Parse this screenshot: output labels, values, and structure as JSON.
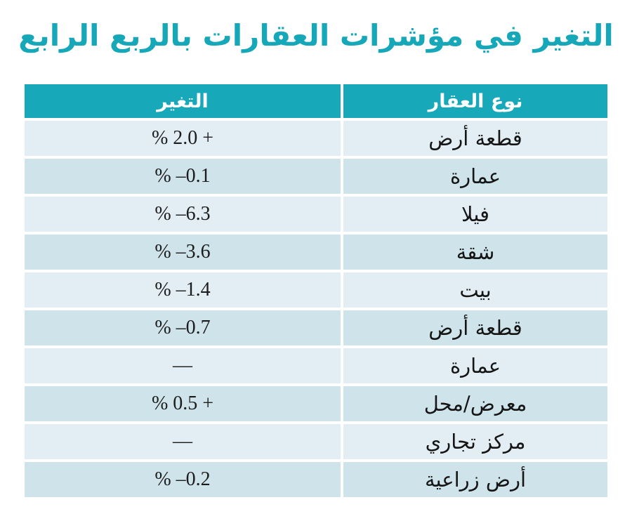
{
  "title": "التغير في مؤشرات العقارات بالربع الرابع",
  "table": {
    "headers": {
      "change": "التغير",
      "property_type": "نوع العقار"
    },
    "rows": [
      {
        "type": "قطعة أرض",
        "change": "% 2.0 +"
      },
      {
        "type": "عمارة",
        "change": "% –0.1"
      },
      {
        "type": "فيلا",
        "change": "% –6.3"
      },
      {
        "type": "شقة",
        "change": "% –3.6"
      },
      {
        "type": "بيت",
        "change": "% –1.4"
      },
      {
        "type": "قطعة أرض",
        "change": "% –0.7"
      },
      {
        "type": "عمارة",
        "change": "––"
      },
      {
        "type": "معرض/محل",
        "change": "% 0.5 +"
      },
      {
        "type": "مركز تجاري",
        "change": "––"
      },
      {
        "type": "أرض زراعية",
        "change": "% –0.2"
      }
    ]
  },
  "chart_data": {
    "type": "table",
    "title": "التغير في مؤشرات العقارات بالربع الرابع",
    "columns": [
      "التغير",
      "نوع العقار"
    ],
    "categories": [
      "قطعة أرض",
      "عمارة",
      "فيلا",
      "شقة",
      "بيت",
      "قطعة أرض",
      "عمارة",
      "معرض/محل",
      "مركز تجاري",
      "أرض زراعية"
    ],
    "values_percent": [
      2.0,
      -0.1,
      -6.3,
      -3.6,
      -1.4,
      -0.7,
      null,
      0.5,
      null,
      -0.2
    ],
    "missing_marker": "––"
  },
  "colors": {
    "accent_teal": "#17a9ba",
    "title_teal": "#16a8b8",
    "row_light": "#e3eef4",
    "row_dark": "#cfe3eb",
    "text_dark": "#1c1c1c",
    "header_text": "#ffffff"
  }
}
